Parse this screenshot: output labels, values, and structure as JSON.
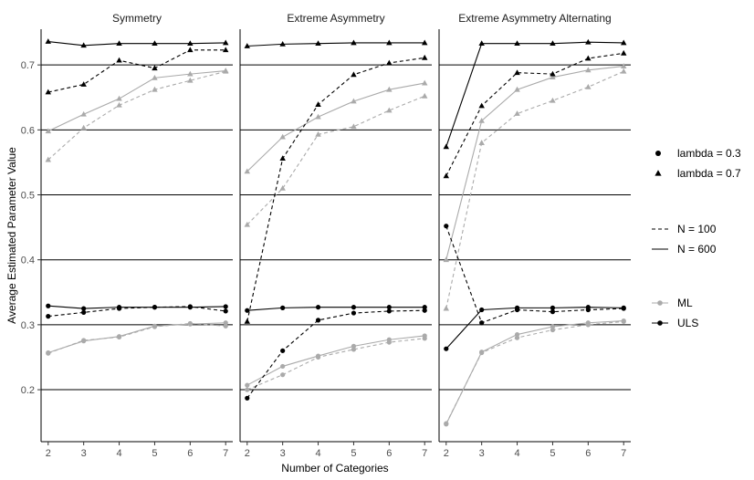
{
  "chart_data": {
    "type": "line",
    "xlabel": "Number of Categories",
    "ylabel": "Average Estimated Parameter Value",
    "x": [
      2,
      3,
      4,
      5,
      6,
      7
    ],
    "xlim": [
      1.8,
      7.2
    ],
    "ylim": [
      0.12,
      0.755
    ],
    "yticks": [
      0.2,
      0.3,
      0.4,
      0.5,
      0.6,
      0.7
    ],
    "ytick_labels": [
      "0.2",
      "0.3",
      "0.4",
      "0.5",
      "0.6",
      "0.7"
    ],
    "grid": "horizontal major lines",
    "colors": {
      "ULS": "#000000",
      "ML": "#aaaaaa"
    },
    "legend": {
      "placement": "right",
      "shape_entries": [
        {
          "label": "lambda = 0.3",
          "shape": "circle"
        },
        {
          "label": "lambda = 0.7",
          "shape": "triangle"
        }
      ],
      "linetype_entries": [
        {
          "label": "N = 100",
          "dash": "dashed"
        },
        {
          "label": "N = 600",
          "dash": "solid"
        }
      ],
      "color_entries": [
        {
          "label": "ML",
          "color": "#aaaaaa"
        },
        {
          "label": "ULS",
          "color": "#000000"
        }
      ]
    },
    "panels": [
      {
        "title": "Symmetry",
        "series": [
          {
            "method": "ULS",
            "lambda": "0.7",
            "N": "600",
            "values": [
              0.736,
              0.73,
              0.733,
              0.733,
              0.733,
              0.734
            ]
          },
          {
            "method": "ULS",
            "lambda": "0.7",
            "N": "100",
            "values": [
              0.658,
              0.67,
              0.707,
              0.695,
              0.723,
              0.723
            ]
          },
          {
            "method": "ML",
            "lambda": "0.7",
            "N": "600",
            "values": [
              0.598,
              0.624,
              0.648,
              0.68,
              0.686,
              0.691
            ]
          },
          {
            "method": "ML",
            "lambda": "0.7",
            "N": "100",
            "values": [
              0.554,
              0.603,
              0.638,
              0.662,
              0.676,
              0.69
            ]
          },
          {
            "method": "ULS",
            "lambda": "0.3",
            "N": "600",
            "values": [
              0.329,
              0.325,
              0.327,
              0.327,
              0.327,
              0.328
            ]
          },
          {
            "method": "ULS",
            "lambda": "0.3",
            "N": "100",
            "values": [
              0.313,
              0.319,
              0.325,
              0.327,
              0.328,
              0.321
            ]
          },
          {
            "method": "ML",
            "lambda": "0.3",
            "N": "600",
            "values": [
              0.257,
              0.275,
              0.282,
              0.298,
              0.301,
              0.303
            ]
          },
          {
            "method": "ML",
            "lambda": "0.3",
            "N": "100",
            "values": [
              0.256,
              0.276,
              0.281,
              0.297,
              0.302,
              0.298
            ]
          }
        ]
      },
      {
        "title": "Extreme Asymmetry",
        "series": [
          {
            "method": "ULS",
            "lambda": "0.7",
            "N": "600",
            "values": [
              0.729,
              0.732,
              0.733,
              0.734,
              0.734,
              0.734
            ]
          },
          {
            "method": "ULS",
            "lambda": "0.7",
            "N": "100",
            "values": [
              0.305,
              0.556,
              0.639,
              0.685,
              0.703,
              0.711
            ]
          },
          {
            "method": "ML",
            "lambda": "0.7",
            "N": "600",
            "values": [
              0.536,
              0.589,
              0.62,
              0.644,
              0.662,
              0.672
            ]
          },
          {
            "method": "ML",
            "lambda": "0.7",
            "N": "100",
            "values": [
              0.454,
              0.51,
              0.593,
              0.605,
              0.63,
              0.652
            ]
          },
          {
            "method": "ULS",
            "lambda": "0.3",
            "N": "600",
            "values": [
              0.322,
              0.326,
              0.327,
              0.327,
              0.327,
              0.327
            ]
          },
          {
            "method": "ULS",
            "lambda": "0.3",
            "N": "100",
            "values": [
              0.187,
              0.26,
              0.307,
              0.318,
              0.321,
              0.322
            ]
          },
          {
            "method": "ML",
            "lambda": "0.3",
            "N": "600",
            "values": [
              0.207,
              0.236,
              0.252,
              0.267,
              0.277,
              0.283
            ]
          },
          {
            "method": "ML",
            "lambda": "0.3",
            "N": "100",
            "values": [
              0.2,
              0.223,
              0.25,
              0.262,
              0.273,
              0.279
            ]
          }
        ]
      },
      {
        "title": "Extreme Asymmetry Alternating",
        "series": [
          {
            "method": "ULS",
            "lambda": "0.7",
            "N": "600",
            "values": [
              0.574,
              0.733,
              0.733,
              0.733,
              0.735,
              0.734
            ]
          },
          {
            "method": "ULS",
            "lambda": "0.7",
            "N": "100",
            "values": [
              0.529,
              0.637,
              0.688,
              0.686,
              0.71,
              0.718
            ]
          },
          {
            "method": "ML",
            "lambda": "0.7",
            "N": "600",
            "values": [
              0.4,
              0.614,
              0.662,
              0.681,
              0.692,
              0.698
            ]
          },
          {
            "method": "ML",
            "lambda": "0.7",
            "N": "100",
            "values": [
              0.325,
              0.58,
              0.625,
              0.645,
              0.666,
              0.69
            ]
          },
          {
            "method": "ULS",
            "lambda": "0.3",
            "N": "600",
            "values": [
              0.263,
              0.323,
              0.326,
              0.326,
              0.327,
              0.326
            ]
          },
          {
            "method": "ULS",
            "lambda": "0.3",
            "N": "100",
            "values": [
              0.452,
              0.303,
              0.323,
              0.32,
              0.323,
              0.325
            ]
          },
          {
            "method": "ML",
            "lambda": "0.3",
            "N": "600",
            "values": [
              0.147,
              0.258,
              0.285,
              0.297,
              0.303,
              0.306
            ]
          },
          {
            "method": "ML",
            "lambda": "0.3",
            "N": "100",
            "values": [
              0.148,
              0.257,
              0.28,
              0.292,
              0.3,
              0.305
            ]
          }
        ]
      }
    ]
  }
}
